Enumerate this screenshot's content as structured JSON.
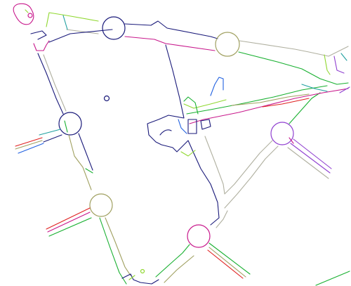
{
  "diagram": {
    "kind": "edge-detection-map",
    "background": "#ffffff",
    "colors": {
      "navy": "#1a1a7a",
      "magenta": "#c8198c",
      "green": "#18b030",
      "lime": "#90d830",
      "olive": "#a0a060",
      "purple": "#9040d0",
      "blue": "#2060e0",
      "red": "#e02020",
      "teal": "#20a0a0",
      "gray": "#b0b0a0",
      "orange": "#e08020"
    },
    "stroke_palette": [
      "navy",
      "magenta",
      "green",
      "lime",
      "olive",
      "purple",
      "blue",
      "red",
      "teal",
      "gray"
    ],
    "labels": []
  }
}
